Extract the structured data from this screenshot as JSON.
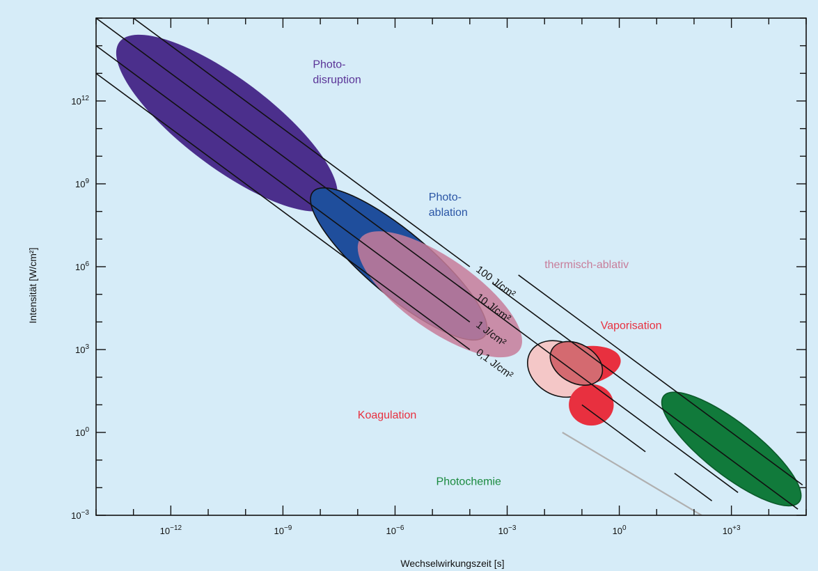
{
  "chart_data": {
    "type": "scatter",
    "xlabel": "Wechselwirkungszeit [s]",
    "ylabel": "Intensität [W/cm²]",
    "x_scale": "log",
    "y_scale": "log",
    "xlim": [
      1e-14,
      100000.0
    ],
    "ylim": [
      0.001,
      1000000000000000.0
    ],
    "x_ticks": [
      {
        "value": 1e-12,
        "base": "10",
        "exp": "−12"
      },
      {
        "value": 1e-09,
        "base": "10",
        "exp": "−9"
      },
      {
        "value": 1e-06,
        "base": "10",
        "exp": "−6"
      },
      {
        "value": 0.001,
        "base": "10",
        "exp": "−3"
      },
      {
        "value": 1,
        "base": "10",
        "exp": "0"
      },
      {
        "value": 1000.0,
        "base": "10",
        "exp": "+3"
      }
    ],
    "y_ticks": [
      {
        "value": 0.001,
        "base": "10",
        "exp": "−3"
      },
      {
        "value": 1,
        "base": "10",
        "exp": "0"
      },
      {
        "value": 1000.0,
        "base": "10",
        "exp": "3"
      },
      {
        "value": 1000000.0,
        "base": "10",
        "exp": "6"
      },
      {
        "value": 1000000000.0,
        "base": "10",
        "exp": "9"
      },
      {
        "value": 1000000000000.0,
        "base": "10",
        "exp": "12"
      }
    ],
    "fluence_lines": [
      {
        "label": "100 J/cm²",
        "fluence": 100,
        "range": [
          1e-14,
          0.0001
        ],
        "show_label": true
      },
      {
        "label": "10 J/cm²",
        "fluence": 10,
        "range": [
          1e-14,
          0.0001
        ],
        "show_label": true
      },
      {
        "label": "1 J/cm²",
        "fluence": 1,
        "range": [
          1e-14,
          0.0001
        ],
        "show_label": true
      },
      {
        "label": "0,1 J/cm²",
        "fluence": 0.1,
        "range": [
          1e-14,
          0.0001
        ],
        "show_label": true
      },
      {
        "label": "",
        "fluence": 1000,
        "range": [
          0.002,
          80000
        ],
        "show_label": false
      },
      {
        "label": "",
        "fluence": 100,
        "range": [
          0.0004,
          60000
        ],
        "show_label": false
      },
      {
        "label": "",
        "fluence": 10,
        "range": [
          5e-05,
          1500
        ],
        "show_label": false
      },
      {
        "label": "",
        "fluence": 1,
        "range": [
          0.1,
          5
        ],
        "show_label": false
      },
      {
        "label": "",
        "fluence": 1,
        "range": [
          30,
          300
        ],
        "show_label": false
      }
    ],
    "grey_line": {
      "x": [
        0.03,
        300
      ],
      "y": [
        1.0,
        0.0006
      ],
      "color": "#b0b0b0"
    },
    "regions": [
      {
        "name": "Photo-\ndisruption",
        "cx_log": -10.5,
        "cy_log": 11.2,
        "rx_log": 3.6,
        "ry_log": 1.6,
        "angle": 37,
        "color": "#4b2f8c",
        "opacity": 1.0,
        "label_color": "#5a3497",
        "label_x_log": -8.2,
        "label_y_log": 13.2
      },
      {
        "name": "Photo-\nablation",
        "cx_log": -5.9,
        "cy_log": 6.1,
        "rx_log": 3.0,
        "ry_log": 1.15,
        "angle": 40,
        "color": "#1f4e9c",
        "opacity": 1.0,
        "label_color": "#2a55a5",
        "label_x_log": -5.1,
        "label_y_log": 8.4
      },
      {
        "name": "thermisch-ablativ",
        "cx_log": -4.8,
        "cy_log": 5.0,
        "rx_log": 2.6,
        "ry_log": 1.3,
        "angle": 35,
        "color": "#c77d9a",
        "opacity": 0.85,
        "label_color": "#c77d9a",
        "label_x_log": -2.0,
        "label_y_log": 5.95
      },
      {
        "name": "Vaporisation",
        "cx_log": -1.0,
        "cy_log": 2.4,
        "rx_log": 1.05,
        "ry_log": 0.7,
        "angle": -10,
        "color": "#e8303f",
        "opacity": 1.0,
        "label_color": "#e8303f",
        "label_x_log": -0.5,
        "label_y_log": 3.75
      },
      {
        "name": "Koagulation",
        "cx_log": -1.6,
        "cy_log": 2.3,
        "rx_log": 0.9,
        "ry_log": 0.95,
        "angle": 30,
        "color": "#f4c7c7",
        "opacity": 1.0,
        "label_color": "#e8303f",
        "label_x_log": -7.0,
        "label_y_log": 0.5
      },
      {
        "name": "",
        "cx_log": -0.75,
        "cy_log": 1.0,
        "rx_log": 0.6,
        "ry_log": 0.75,
        "angle": 0,
        "color": "#e8303f",
        "opacity": 1.0,
        "label_color": "#e8303f",
        "label_x_log": 0,
        "label_y_log": 0
      },
      {
        "name": "",
        "cx_log": -1.15,
        "cy_log": 2.5,
        "rx_log": 0.75,
        "ry_log": 0.7,
        "angle": 30,
        "color": "#d46a70",
        "opacity": 1.0,
        "label_color": "#e8303f",
        "label_x_log": 0,
        "label_y_log": 0
      },
      {
        "name": "Photochemie",
        "cx_log": 3.0,
        "cy_log": -0.6,
        "rx_log": 2.3,
        "ry_log": 0.95,
        "angle": 38,
        "color": "#117a3b",
        "opacity": 1.0,
        "label_color": "#1a8a3e",
        "label_x_log": -4.9,
        "label_y_log": -1.9
      }
    ]
  },
  "colors": {
    "plot_background": "#d6ecf8",
    "axis": "#111111"
  }
}
